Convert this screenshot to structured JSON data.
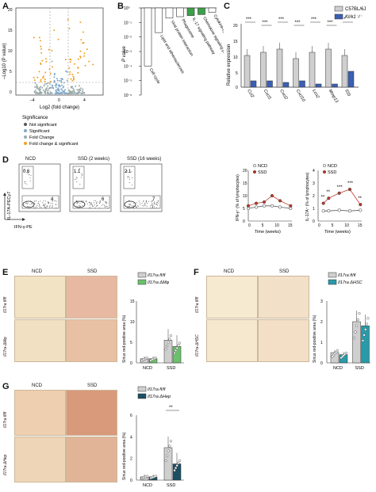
{
  "panels": {
    "a": "A",
    "b": "B",
    "c": "C",
    "d": "D",
    "e": "E",
    "f": "F",
    "g": "G"
  },
  "a": {
    "ylabel": "–Log10 (P value)",
    "xlabel": "Log2 (fold change)",
    "xticks": [
      "–4",
      "0",
      "4"
    ],
    "yticks": [
      "20",
      "15",
      "10",
      "5",
      "0"
    ],
    "legend_title": "Significance",
    "legend": [
      "Not significant",
      "Significant",
      "Fold Change",
      "Fold change & significant"
    ]
  },
  "b": {
    "ylabel": "P value",
    "yticks": [
      "10⁻⁶",
      "10⁻⁵",
      "10⁻⁴",
      "10⁻³",
      "10⁻²",
      "10⁻¹",
      "10⁰"
    ],
    "categories": [
      "Cell cycle",
      "Lipid and atherosclerosis",
      "Viral protein interaction",
      "Phagosome",
      "IL-17 signaling pathway",
      "Chemokine signaling pathway",
      "Cytokine-cytokine receptor int."
    ],
    "colors": [
      "#ffffff",
      "#ffffff",
      "#ffffff",
      "#ffffff",
      "#3aa14a",
      "#3aa14a",
      "#ffffff"
    ]
  },
  "c": {
    "ylabel": "Relative expression",
    "yticks": [
      "20",
      "15",
      "10",
      "5",
      "0"
    ],
    "genes": [
      "Ccl2",
      "Cxcl1",
      "Cxcl2",
      "Cxcl10",
      "Lcn2",
      "Mmp13",
      "Il1b"
    ],
    "sig": [
      "***",
      "***",
      "***",
      "***",
      "***",
      "***",
      "*"
    ],
    "legend": [
      "C57BL/6J",
      "Klrk1⁻/⁻"
    ]
  },
  "d": {
    "groups": [
      "NCD",
      "SSD (2 weeks)",
      "SSD (16 weeks)"
    ],
    "numbers": [
      [
        "0.6",
        "4"
      ],
      [
        "1.1",
        "6"
      ],
      [
        "2.1",
        "7"
      ]
    ],
    "ylabel": "IL-17A-PECy7",
    "xlabel": "IFN-γ-PE",
    "legend": [
      "NCD",
      "SSD"
    ],
    "ifng": {
      "ylabel": "IFN-γ⁺ (% of lymphocytes)",
      "xlabel": "Time (weeks)",
      "yticks": [
        "20",
        "15",
        "10",
        "5",
        "0"
      ],
      "xticks": [
        "0",
        "5",
        "10",
        "15"
      ]
    },
    "il17": {
      "ylabel": "IL-17A⁺ (% of lymphocytes)",
      "xlabel": "Time (weeks)",
      "yticks": [
        "4",
        "3",
        "2",
        "1",
        "0"
      ],
      "xticks": [
        "0",
        "5",
        "10",
        "15"
      ],
      "sig": [
        "**",
        "**",
        "***",
        "***",
        "**"
      ]
    }
  },
  "e": {
    "cols": [
      "NCD",
      "SSD"
    ],
    "rows": [
      "Il17ra fl/fl",
      "Il17ra ΔMφ"
    ],
    "ylabel": "Sirius red-positive area (%)",
    "yticks": [
      "15",
      "10",
      "5",
      "0"
    ],
    "legend": [
      "Il17ra fl/fl",
      "Il17ra ΔMφ"
    ],
    "xticks": [
      "NCD",
      "SSD"
    ]
  },
  "f": {
    "cols": [
      "NCD",
      "SSD"
    ],
    "rows": [
      "Il17ra fl/fl",
      "Il17ra ΔHSC"
    ],
    "ylabel": "Sirius red-positive area (%)",
    "yticks": [
      "3",
      "2",
      "1",
      "0"
    ],
    "legend": [
      "Il17ra fl/fl",
      "Il17ra ΔHSC"
    ],
    "xticks": [
      "NCD",
      "SSD"
    ]
  },
  "g": {
    "cols": [
      "NCD",
      "SSD"
    ],
    "rows": [
      "Il17ra fl/fl",
      "Il17ra ΔHep"
    ],
    "ylabel": "Sirius red-positive area (%)",
    "yticks": [
      "6",
      "4",
      "2",
      "0"
    ],
    "legend": [
      "Il17ra fl/fl",
      "Il17ra ΔHep"
    ],
    "xticks": [
      "NCD",
      "SSD"
    ],
    "sig": "**"
  },
  "chart_data": [
    {
      "type": "bar",
      "panel": "B",
      "categories": [
        "Cell cycle",
        "Lipid and atherosclerosis",
        "Viral protein interaction",
        "Phagosome",
        "IL-17 signaling pathway",
        "Chemokine signaling pathway",
        "Cytokine-cytokine receptor int."
      ],
      "values": [
        0.0001,
        0.02,
        0.2,
        0.25,
        0.3,
        0.35,
        0.5
      ],
      "log_scale": true
    },
    {
      "type": "bar",
      "panel": "C",
      "categories": [
        "Ccl2",
        "Cxcl1",
        "Cxcl2",
        "Cxcl10",
        "Lcn2",
        "Mmp13",
        "Il1b"
      ],
      "series": [
        {
          "name": "C57BL/6J",
          "values": [
            10,
            11,
            12,
            9,
            11,
            12,
            10
          ]
        },
        {
          "name": "Klrk1-/-",
          "values": [
            2,
            2,
            1.5,
            2,
            1,
            1,
            5
          ]
        }
      ],
      "ylim": [
        0,
        20
      ]
    },
    {
      "type": "line",
      "panel": "D-IFNg",
      "x": [
        0,
        3,
        6,
        9,
        12,
        16
      ],
      "series": [
        {
          "name": "NCD",
          "values": [
            5,
            5.5,
            6,
            6,
            5.5,
            5
          ]
        },
        {
          "name": "SSD",
          "values": [
            6,
            7,
            7.5,
            10,
            8,
            6
          ]
        }
      ],
      "ylim": [
        0,
        20
      ]
    },
    {
      "type": "line",
      "panel": "D-IL17A",
      "x": [
        2,
        4,
        8,
        12,
        16
      ],
      "series": [
        {
          "name": "NCD",
          "values": [
            0.8,
            0.8,
            0.85,
            0.8,
            0.85
          ]
        },
        {
          "name": "SSD",
          "values": [
            1.4,
            1.8,
            2.2,
            2.5,
            1.3
          ]
        }
      ],
      "ylim": [
        0,
        4
      ]
    },
    {
      "type": "bar",
      "panel": "E",
      "categories": [
        "NCD",
        "SSD"
      ],
      "series": [
        {
          "name": "Il17ra fl/fl",
          "values": [
            1,
            5.5
          ]
        },
        {
          "name": "Il17ra ΔMφ",
          "values": [
            1,
            4
          ]
        }
      ],
      "ylim": [
        0,
        15
      ]
    },
    {
      "type": "bar",
      "panel": "F",
      "categories": [
        "NCD",
        "SSD"
      ],
      "series": [
        {
          "name": "Il17ra fl/fl",
          "values": [
            0.5,
            2
          ]
        },
        {
          "name": "Il17ra ΔHSC",
          "values": [
            0.4,
            1.8
          ]
        }
      ],
      "ylim": [
        0,
        3
      ]
    },
    {
      "type": "bar",
      "panel": "G",
      "categories": [
        "NCD",
        "SSD"
      ],
      "series": [
        {
          "name": "Il17ra fl/fl",
          "values": [
            0.3,
            3
          ]
        },
        {
          "name": "Il17ra ΔHep",
          "values": [
            0.3,
            1.5
          ]
        }
      ],
      "ylim": [
        0,
        6
      ]
    }
  ]
}
